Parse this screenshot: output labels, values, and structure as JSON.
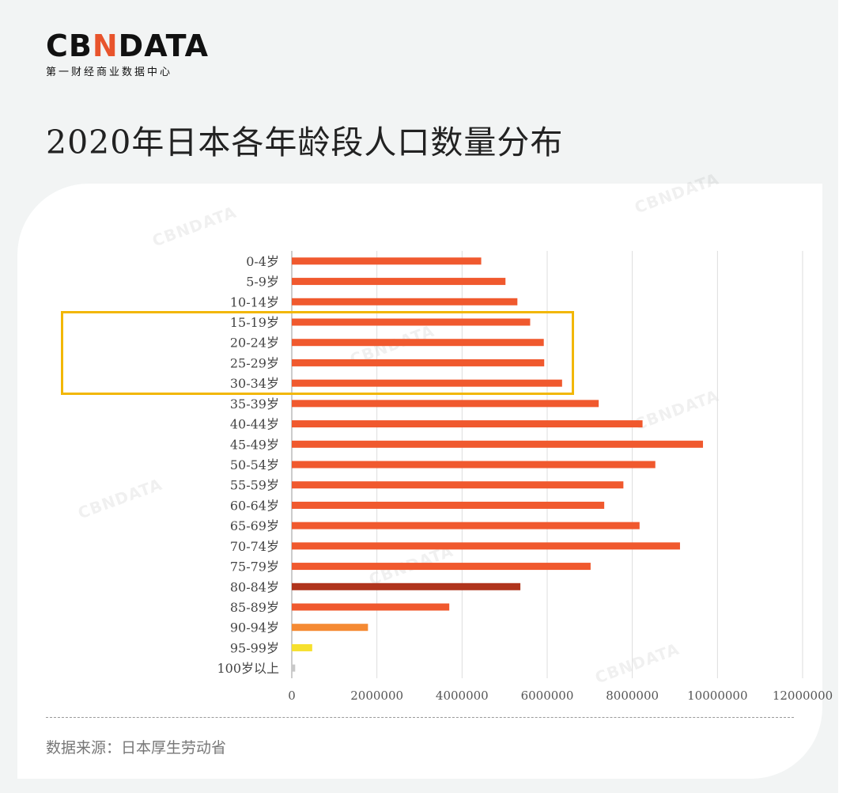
{
  "brand": {
    "logo_left": "CB",
    "logo_accent": "N",
    "logo_right": "DATA",
    "subtitle": "第一财经商业数据中心"
  },
  "title": "2020年日本各年龄段人口数量分布",
  "source": "数据来源：日本厚生劳动省",
  "watermark": "CBNDATA",
  "colors": {
    "bar_default": "#f0592e",
    "bar_80_84": "#b0341c",
    "bar_90_94": "#f58a33",
    "bar_95_99": "#f6e02e",
    "bar_100": "#c8c8c8",
    "highlight": "#f2b705",
    "grid": "#dddddd"
  },
  "chart_data": {
    "type": "bar",
    "orientation": "horizontal",
    "categories": [
      "0-4岁",
      "5-9岁",
      "10-14岁",
      "15-19岁",
      "20-24岁",
      "25-29岁",
      "30-34岁",
      "35-39岁",
      "40-44岁",
      "45-49岁",
      "50-54岁",
      "55-59岁",
      "60-64岁",
      "65-69岁",
      "70-74岁",
      "75-79岁",
      "80-84岁",
      "85-89岁",
      "90-94岁",
      "95-99岁",
      "100岁以上"
    ],
    "values": [
      4450000,
      5020000,
      5300000,
      5600000,
      5920000,
      5930000,
      6350000,
      7210000,
      8240000,
      9660000,
      8540000,
      7790000,
      7340000,
      8170000,
      9120000,
      7020000,
      5370000,
      3700000,
      1790000,
      480000,
      80000
    ],
    "xlim": [
      0,
      12000000
    ],
    "xticks": [
      "0",
      "2000000",
      "4000000",
      "6000000",
      "8000000",
      "10000000",
      "12000000"
    ],
    "grid": "vertical",
    "highlighted_categories": [
      "15-19岁",
      "20-24岁",
      "25-29岁",
      "30-34岁"
    ]
  }
}
